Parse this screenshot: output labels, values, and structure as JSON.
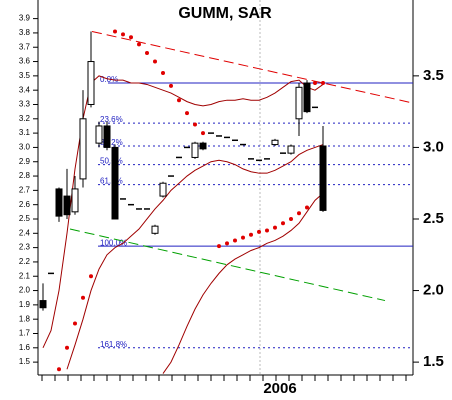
{
  "chart_data": {
    "type": "candlestick",
    "title": "GUMM, SAR",
    "x_label": "2006",
    "categories": [
      null,
      null,
      null,
      null,
      null,
      null,
      null,
      null,
      null,
      null,
      null,
      null,
      null,
      null,
      null,
      null,
      null,
      null,
      null,
      null,
      null,
      null,
      null,
      null,
      null,
      null,
      null,
      null,
      null,
      null,
      null,
      null,
      null,
      null,
      null,
      null
    ],
    "open": [
      1.93,
      2.12,
      2.71,
      2.66,
      2.55,
      2.78,
      3.3,
      3.03,
      3.15,
      3.0,
      2.64,
      2.6,
      2.57,
      2.57,
      2.4,
      2.66,
      2.8,
      2.93,
      3.0,
      2.93,
      3.03,
      3.1,
      3.08,
      3.07,
      3.05,
      3.02,
      2.92,
      2.91,
      2.92,
      3.02,
      2.96,
      2.96,
      3.2,
      3.45,
      3.28,
      3.01
    ],
    "high": [
      2.05,
      2.12,
      2.72,
      2.85,
      2.8,
      3.4,
      3.81,
      3.18,
      3.18,
      3.02,
      2.64,
      2.6,
      2.57,
      2.57,
      2.46,
      2.76,
      2.8,
      2.93,
      3.0,
      3.04,
      3.04,
      3.1,
      3.08,
      3.07,
      3.05,
      3.02,
      2.92,
      2.91,
      2.92,
      3.06,
      2.96,
      3.02,
      3.45,
      3.47,
      3.28,
      3.15
    ],
    "low": [
      1.86,
      2.12,
      2.48,
      2.5,
      2.53,
      2.72,
      3.28,
      3.0,
      2.98,
      2.5,
      2.64,
      2.6,
      2.57,
      2.57,
      2.39,
      2.65,
      2.8,
      2.93,
      3.0,
      2.92,
      2.98,
      3.1,
      3.08,
      3.07,
      3.05,
      3.02,
      2.92,
      2.91,
      2.92,
      3.01,
      2.96,
      2.95,
      3.08,
      3.24,
      3.28,
      2.55
    ],
    "close": [
      1.88,
      2.12,
      2.52,
      2.53,
      2.71,
      3.2,
      3.6,
      3.15,
      3.0,
      2.5,
      2.64,
      2.6,
      2.57,
      2.57,
      2.45,
      2.75,
      2.8,
      2.93,
      3.0,
      3.03,
      2.99,
      3.1,
      3.08,
      3.07,
      3.05,
      3.02,
      2.92,
      2.91,
      2.92,
      3.05,
      2.96,
      3.01,
      3.42,
      3.25,
      3.28,
      2.56
    ],
    "up_color": "#ffffff",
    "down_color": "#000000",
    "sar": {
      "color": "#e00000",
      "values": [
        null,
        null,
        1.45,
        1.6,
        1.77,
        1.95,
        2.1,
        null,
        null,
        3.81,
        3.79,
        3.77,
        3.72,
        3.66,
        3.6,
        3.52,
        3.43,
        3.33,
        3.24,
        3.16,
        3.1,
        null,
        2.31,
        2.33,
        2.35,
        2.37,
        2.39,
        2.41,
        2.42,
        2.44,
        2.47,
        2.5,
        2.54,
        2.58,
        3.45,
        3.45
      ]
    },
    "moving_averages": [
      {
        "color": "#a00000",
        "values": [
          1.6,
          1.72,
          2.0,
          2.4,
          2.85,
          3.2,
          3.45,
          3.5,
          3.48,
          3.47,
          3.47,
          3.45,
          3.45,
          3.44,
          3.42,
          3.4,
          3.38,
          3.35,
          3.32,
          3.3,
          3.29,
          3.3,
          3.32,
          3.33,
          3.33,
          3.34,
          3.33,
          3.33,
          3.35,
          3.38,
          3.42,
          3.46,
          3.47,
          3.42,
          3.4,
          3.44
        ]
      },
      {
        "color": "#a00000",
        "values": [
          null,
          null,
          null,
          1.45,
          1.62,
          1.8,
          2.0,
          2.15,
          2.25,
          2.3,
          2.33,
          2.38,
          2.43,
          2.5,
          2.57,
          2.63,
          2.7,
          2.75,
          2.8,
          2.84,
          2.87,
          2.9,
          2.91,
          2.9,
          2.88,
          2.85,
          2.83,
          2.82,
          2.82,
          2.84,
          2.87,
          2.9,
          2.95,
          2.98,
          3.0,
          3.02
        ]
      },
      {
        "color": "#a00000",
        "values": [
          null,
          null,
          null,
          null,
          null,
          null,
          null,
          null,
          null,
          null,
          null,
          null,
          null,
          null,
          null,
          1.42,
          1.5,
          1.62,
          1.75,
          1.87,
          1.97,
          2.05,
          2.12,
          2.18,
          2.22,
          2.25,
          2.28,
          2.3,
          2.33,
          2.35,
          2.38,
          2.42,
          2.47,
          2.55,
          2.63,
          2.68
        ]
      }
    ],
    "fibonacci": {
      "color": "#2020c0",
      "levels": [
        {
          "label": "0.0%",
          "value": 3.45,
          "solid": true
        },
        {
          "label": "23.6%",
          "value": 3.17,
          "solid": false
        },
        {
          "label": "38.2%",
          "value": 3.01,
          "solid": false
        },
        {
          "label": "50.0%",
          "value": 2.88,
          "solid": false
        },
        {
          "label": "61.8%",
          "value": 2.74,
          "solid": false
        },
        {
          "label": "100.0%",
          "value": 2.31,
          "solid": true
        },
        {
          "label": "161.8%",
          "value": 1.6,
          "solid": false
        }
      ]
    },
    "trend_lines": [
      {
        "color": "#e00000",
        "values": [
          3.81,
          3.31
        ]
      },
      {
        "color": "#00a000",
        "values": [
          2.43,
          1.93
        ]
      }
    ],
    "ylim": [
      1.41,
      4.03
    ],
    "yticks": [
      1.5,
      1.6,
      1.7,
      1.8,
      1.9,
      {
        "value": 2,
        "label": "2.0"
      },
      2.1,
      2.2,
      2.3,
      2.4,
      2.5,
      2.6,
      2.7,
      2.8,
      2.9,
      {
        "value": 3,
        "label": "3.0"
      },
      3.1,
      3.2,
      3.3,
      3.4,
      3.5,
      3.6,
      3.7,
      3.8,
      3.9
    ],
    "y2lim": [
      1.41,
      4.03
    ],
    "y2ticks": [
      1.5,
      {
        "value": 2,
        "label": "2.0"
      },
      2.5,
      {
        "value": 3,
        "label": "3.0"
      },
      3.5
    ]
  }
}
